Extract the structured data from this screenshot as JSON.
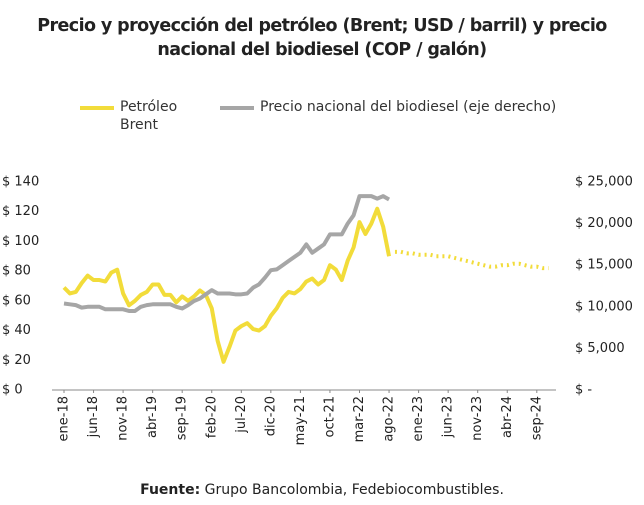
{
  "chart_data": {
    "type": "line",
    "title": "Precio y proyección del petróleo (Brent; USD / barril) y precio nacional del biodiesel (COP / galón)",
    "source_label": "Fuente:",
    "source": "Grupo Bancolombia, Fedebiocombustibles.",
    "categories": [
      "ene-18",
      null,
      null,
      null,
      null,
      "jun-18",
      null,
      null,
      null,
      null,
      "nov-18",
      null,
      null,
      null,
      null,
      "abr-19",
      null,
      null,
      null,
      null,
      "sep-19",
      null,
      null,
      null,
      null,
      "feb-20",
      null,
      null,
      null,
      null,
      "jul-20",
      null,
      null,
      null,
      null,
      "dic-20",
      null,
      null,
      null,
      null,
      "may-21",
      null,
      null,
      null,
      null,
      "oct-21",
      null,
      null,
      null,
      null,
      "mar-22",
      null,
      null,
      null,
      null,
      "ago-22",
      null,
      null,
      null,
      null,
      "ene-23",
      null,
      null,
      null,
      null,
      "jun-23",
      null,
      null,
      null,
      null,
      "nov-23",
      null,
      null,
      null,
      null,
      "abr-24",
      null,
      null,
      null,
      null,
      "sep-24",
      null,
      null
    ],
    "series": [
      {
        "name": "Petróleo Brent",
        "color": "#f2dc3a",
        "axis": "y",
        "dash_from": 56,
        "values": [
          69,
          65,
          66,
          72,
          77,
          74,
          74,
          73,
          79,
          81,
          65,
          57,
          60,
          64,
          66,
          71,
          71,
          64,
          64,
          59,
          63,
          60,
          63,
          67,
          64,
          55,
          33,
          19,
          29,
          40,
          43,
          45,
          41,
          40,
          43,
          50,
          55,
          62,
          66,
          65,
          68,
          73,
          75,
          71,
          74,
          84,
          81,
          74,
          87,
          96,
          113,
          105,
          112,
          122,
          110,
          90,
          93,
          93,
          92,
          92,
          91,
          91,
          91,
          90,
          90,
          90,
          89,
          88,
          87,
          86,
          85,
          84,
          83,
          83,
          84,
          84,
          85,
          85,
          84,
          83,
          83,
          82,
          82
        ]
      },
      {
        "name": "Precio nacional del biodiesel (eje derecho)",
        "color": "#a6a6a6",
        "axis": "y2",
        "values": [
          10400,
          10300,
          10200,
          9900,
          10000,
          10000,
          10000,
          9700,
          9700,
          9700,
          9700,
          9500,
          9500,
          10000,
          10200,
          10300,
          10300,
          10300,
          10300,
          10000,
          9800,
          10200,
          10700,
          11000,
          11500,
          12000,
          11600,
          11600,
          11600,
          11500,
          11500,
          11600,
          12300,
          12700,
          13500,
          14400,
          14500,
          15000,
          15500,
          16000,
          16500,
          17500,
          16500,
          17000,
          17500,
          18700,
          18700,
          18700,
          20000,
          21000,
          23300,
          23300,
          23300,
          23000,
          23300,
          22900,
          null,
          null,
          null,
          null,
          null,
          null,
          null,
          null,
          null,
          null,
          null,
          null,
          null,
          null,
          null,
          null,
          null,
          null,
          null,
          null,
          null,
          null,
          null,
          null,
          null,
          null,
          null
        ]
      }
    ],
    "ylim": [
      0,
      140
    ],
    "yticks": [
      {
        "value": 0,
        "label": "$ 0"
      },
      {
        "value": 20,
        "label": "$ 20"
      },
      {
        "value": 40,
        "label": "$ 40"
      },
      {
        "value": 60,
        "label": "$ 60"
      },
      {
        "value": 80,
        "label": "$ 80"
      },
      {
        "value": 100,
        "label": "$ 100"
      },
      {
        "value": 120,
        "label": "$ 120"
      },
      {
        "value": 140,
        "label": "$ 140"
      }
    ],
    "y2lim": [
      0,
      25000
    ],
    "y2ticks": [
      {
        "value": 0,
        "label": "$ -"
      },
      {
        "value": 5000,
        "label": "$ 5,000"
      },
      {
        "value": 10000,
        "label": "$ 10,000"
      },
      {
        "value": 15000,
        "label": "$ 15,000"
      },
      {
        "value": 20000,
        "label": "$ 20,000"
      },
      {
        "value": 25000,
        "label": "$ 25,000"
      }
    ]
  }
}
